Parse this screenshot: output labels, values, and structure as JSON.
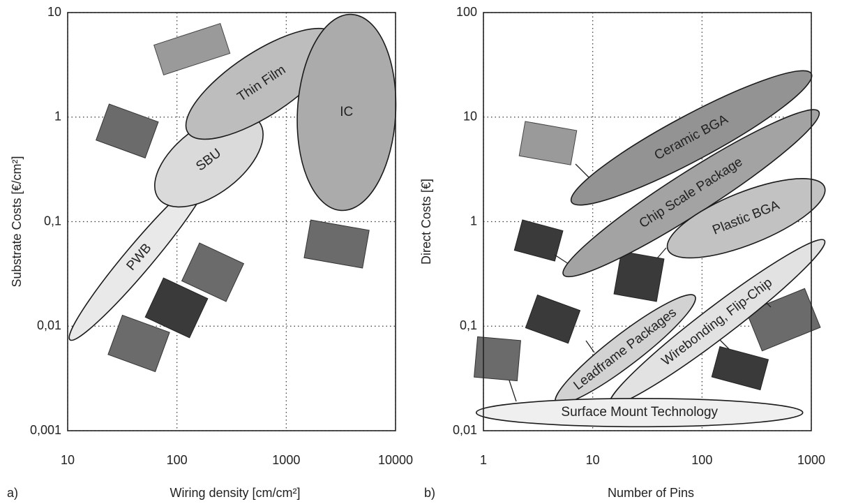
{
  "chart_data": [
    {
      "type": "ellipse",
      "panel_label": "a)",
      "xlabel": "Wiring density [cm/cm²]",
      "ylabel": "Substrate Costs [€/cm²]",
      "log_x": true,
      "log_y": true,
      "grid": true,
      "xlim": [
        10,
        10000
      ],
      "ylim": [
        0.001,
        10
      ],
      "xticks": [
        10,
        100,
        1000,
        10000
      ],
      "yticks": [
        {
          "value": 0.001,
          "label": "0,001"
        },
        {
          "value": 0.01,
          "label": "0,01"
        },
        {
          "value": 0.1,
          "label": "0,1"
        },
        1,
        10
      ],
      "series": [
        {
          "name": "PWB",
          "color": "#e9e9e9",
          "x": [
            10.5,
            196
          ],
          "y": [
            0.0074,
            0.28
          ],
          "width": 0.26
        },
        {
          "name": "SBU",
          "color": "#dadada",
          "x": [
            68,
            565
          ],
          "y": [
            0.166,
            0.9
          ],
          "width": 0.64
        },
        {
          "name": "Thin Film",
          "color": "#bdbdbd",
          "x": [
            126,
            2830
          ],
          "y": [
            0.71,
            6.1
          ],
          "width": 0.6
        },
        {
          "name": "IC",
          "color": "#ababab",
          "x": [
            3180,
            3990
          ],
          "y": [
            0.128,
            9.6
          ],
          "width": 0.94
        }
      ]
    },
    {
      "type": "ellipse",
      "panel_label": "b)",
      "xlabel": "Number of Pins",
      "ylabel": "Direct Costs [€]",
      "log_x": true,
      "log_y": true,
      "grid": true,
      "xlim": [
        1,
        1000
      ],
      "ylim": [
        0.01,
        100
      ],
      "xticks": [
        1,
        10,
        100,
        1000
      ],
      "yticks": [
        {
          "value": 0.01,
          "label": "0,01"
        },
        {
          "value": 0.1,
          "label": "0,1"
        },
        1,
        10,
        100
      ],
      "series": [
        {
          "name": "Ceramic BGA",
          "color": "#939393",
          "x": [
            6.4,
            1000
          ],
          "y": [
            1.54,
            26
          ],
          "width": 0.43
        },
        {
          "name": "Chip Scale Package",
          "color": "#a3a3a3",
          "x": [
            5.4,
            1170
          ],
          "y": [
            0.31,
            11.3
          ],
          "width": 0.4
        },
        {
          "name": "Plastic BGA",
          "color": "#c2c2c2",
          "x": [
            48.7,
            1320
          ],
          "y": [
            0.54,
            2.15
          ],
          "width": 0.5
        },
        {
          "name": "Wirebonding, Flip-Chip",
          "color": "#e2e2e2",
          "x": [
            14.4,
            1320
          ],
          "y": [
            0.018,
            0.66
          ],
          "width": 0.3
        },
        {
          "name": "Leadframe Packages",
          "color": "#d2d2d2",
          "x": [
            4.6,
            86
          ],
          "y": [
            0.0185,
            0.194
          ],
          "width": 0.3
        },
        {
          "name": "Surface Mount Technology",
          "color": "#efefef",
          "x": [
            0.86,
            835
          ],
          "y": [
            0.0149,
            0.0149
          ],
          "width": 0.27
        }
      ]
    }
  ]
}
